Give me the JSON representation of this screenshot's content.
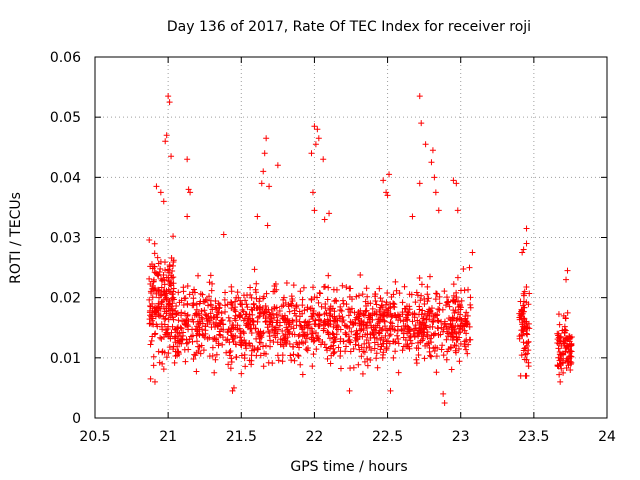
{
  "chart_data": {
    "type": "scatter",
    "title": "Day 136 of 2017, Rate Of TEC Index for receiver roji",
    "xlabel": "GPS time / hours",
    "ylabel": "ROTI / TECUs",
    "xlim": [
      20.5,
      24
    ],
    "ylim": [
      0,
      0.06
    ],
    "xticks": [
      20.5,
      21,
      21.5,
      22,
      22.5,
      23,
      23.5,
      24
    ],
    "xtick_labels": [
      "20.5",
      "21",
      "21.5",
      "22",
      "22.5",
      "23",
      "23.5",
      "24"
    ],
    "yticks": [
      0,
      0.01,
      0.02,
      0.03,
      0.04,
      0.05,
      0.06
    ],
    "ytick_labels": [
      "0",
      "0.01",
      "0.02",
      "0.03",
      "0.04",
      "0.05",
      "0.06"
    ],
    "grid": true,
    "marker": "+",
    "marker_color": "#ff0000",
    "series": [
      {
        "name": "ROTI",
        "description": "Dense cluster of ROTI samples, approx. 1700 points",
        "segments": [
          {
            "x_start": 20.87,
            "x_end": 21.04,
            "y_min": 0.006,
            "y_max": 0.039
          },
          {
            "x_start": 21.04,
            "x_end": 23.07,
            "y_min": 0.002,
            "y_max": 0.031
          },
          {
            "x_start": 23.4,
            "x_end": 23.47,
            "y_min": 0.007,
            "y_max": 0.031
          },
          {
            "x_start": 23.66,
            "x_end": 23.76,
            "y_min": 0.006,
            "y_max": 0.024
          }
        ],
        "highlights": [
          {
            "x": 21.0,
            "y": 0.0535
          },
          {
            "x": 21.01,
            "y": 0.0525
          },
          {
            "x": 20.99,
            "y": 0.047
          },
          {
            "x": 20.98,
            "y": 0.046
          },
          {
            "x": 21.02,
            "y": 0.0435
          },
          {
            "x": 21.13,
            "y": 0.043
          },
          {
            "x": 21.14,
            "y": 0.038
          },
          {
            "x": 21.15,
            "y": 0.0375
          },
          {
            "x": 21.13,
            "y": 0.0335
          },
          {
            "x": 20.92,
            "y": 0.0385
          },
          {
            "x": 20.95,
            "y": 0.0375
          },
          {
            "x": 20.97,
            "y": 0.036
          },
          {
            "x": 21.38,
            "y": 0.0305
          },
          {
            "x": 21.67,
            "y": 0.0465
          },
          {
            "x": 21.66,
            "y": 0.044
          },
          {
            "x": 21.65,
            "y": 0.041
          },
          {
            "x": 21.64,
            "y": 0.039
          },
          {
            "x": 21.69,
            "y": 0.0385
          },
          {
            "x": 21.75,
            "y": 0.042
          },
          {
            "x": 21.61,
            "y": 0.0335
          },
          {
            "x": 21.68,
            "y": 0.032
          },
          {
            "x": 22.0,
            "y": 0.0485
          },
          {
            "x": 22.02,
            "y": 0.048
          },
          {
            "x": 22.03,
            "y": 0.0465
          },
          {
            "x": 22.01,
            "y": 0.0455
          },
          {
            "x": 21.98,
            "y": 0.044
          },
          {
            "x": 22.06,
            "y": 0.043
          },
          {
            "x": 21.99,
            "y": 0.0375
          },
          {
            "x": 22.0,
            "y": 0.0345
          },
          {
            "x": 22.1,
            "y": 0.034
          },
          {
            "x": 22.07,
            "y": 0.033
          },
          {
            "x": 22.47,
            "y": 0.0395
          },
          {
            "x": 22.49,
            "y": 0.0375
          },
          {
            "x": 22.51,
            "y": 0.0405
          },
          {
            "x": 22.5,
            "y": 0.037
          },
          {
            "x": 22.72,
            "y": 0.0535
          },
          {
            "x": 22.73,
            "y": 0.049
          },
          {
            "x": 22.76,
            "y": 0.0455
          },
          {
            "x": 22.81,
            "y": 0.0445
          },
          {
            "x": 22.8,
            "y": 0.0425
          },
          {
            "x": 22.82,
            "y": 0.04
          },
          {
            "x": 22.72,
            "y": 0.039
          },
          {
            "x": 22.83,
            "y": 0.0375
          },
          {
            "x": 22.95,
            "y": 0.0395
          },
          {
            "x": 22.97,
            "y": 0.039
          },
          {
            "x": 22.98,
            "y": 0.0345
          },
          {
            "x": 22.85,
            "y": 0.0345
          },
          {
            "x": 22.67,
            "y": 0.0335
          },
          {
            "x": 22.79,
            "y": 0.0235
          },
          {
            "x": 23.45,
            "y": 0.0315
          },
          {
            "x": 23.43,
            "y": 0.028
          },
          {
            "x": 23.42,
            "y": 0.0275
          },
          {
            "x": 23.45,
            "y": 0.029
          },
          {
            "x": 23.73,
            "y": 0.0245
          },
          {
            "x": 23.72,
            "y": 0.023
          },
          {
            "x": 22.89,
            "y": 0.0025
          },
          {
            "x": 22.88,
            "y": 0.004
          },
          {
            "x": 21.45,
            "y": 0.005
          },
          {
            "x": 21.44,
            "y": 0.0045
          },
          {
            "x": 22.24,
            "y": 0.0045
          },
          {
            "x": 22.52,
            "y": 0.0045
          },
          {
            "x": 20.91,
            "y": 0.006
          },
          {
            "x": 20.88,
            "y": 0.0065
          },
          {
            "x": 23.41,
            "y": 0.007
          },
          {
            "x": 23.45,
            "y": 0.007
          },
          {
            "x": 23.7,
            "y": 0.0075
          },
          {
            "x": 23.68,
            "y": 0.006
          },
          {
            "x": 23.08,
            "y": 0.0275
          },
          {
            "x": 23.06,
            "y": 0.025
          }
        ]
      }
    ]
  }
}
